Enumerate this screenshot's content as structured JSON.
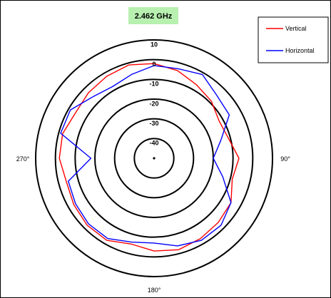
{
  "chart_data": {
    "type": "polar",
    "title": "2.462 GHz",
    "title_background": "#b8f0b0",
    "radial_ticks": [
      "10",
      "0",
      "-10",
      "-20",
      "-30",
      "-40"
    ],
    "radial_tick_values": [
      10,
      0,
      -10,
      -20,
      -30,
      -40
    ],
    "rlim": [
      -50,
      10
    ],
    "angle_labels": {
      "right": "90°",
      "bottom": "180°",
      "left": "270°"
    },
    "angle_step_deg": 15,
    "angles_deg": [
      0,
      15,
      30,
      45,
      60,
      75,
      90,
      105,
      120,
      135,
      150,
      165,
      180,
      195,
      210,
      225,
      240,
      255,
      270,
      285,
      300,
      315,
      330,
      345
    ],
    "legend_position": "top-right",
    "series": [
      {
        "name": "Vertical",
        "color": "#ff0000",
        "values": [
          -2,
          -4,
          -7,
          -9,
          -12,
          -11,
          -7,
          -9,
          -5,
          -4,
          -3,
          -2,
          -3,
          -5,
          -2,
          -2,
          -3,
          -4,
          -2,
          -2,
          -4,
          -3,
          -2,
          -1
        ]
      },
      {
        "name": "Horizontal",
        "color": "#0000ff",
        "values": [
          -3,
          -3,
          -1,
          -5,
          -6,
          -15,
          -20,
          -14,
          -5,
          -2,
          -2,
          -4,
          -7,
          -6,
          -3,
          -3,
          -4,
          -5,
          -18,
          -1,
          -1,
          -6,
          -8,
          -6
        ]
      }
    ]
  }
}
